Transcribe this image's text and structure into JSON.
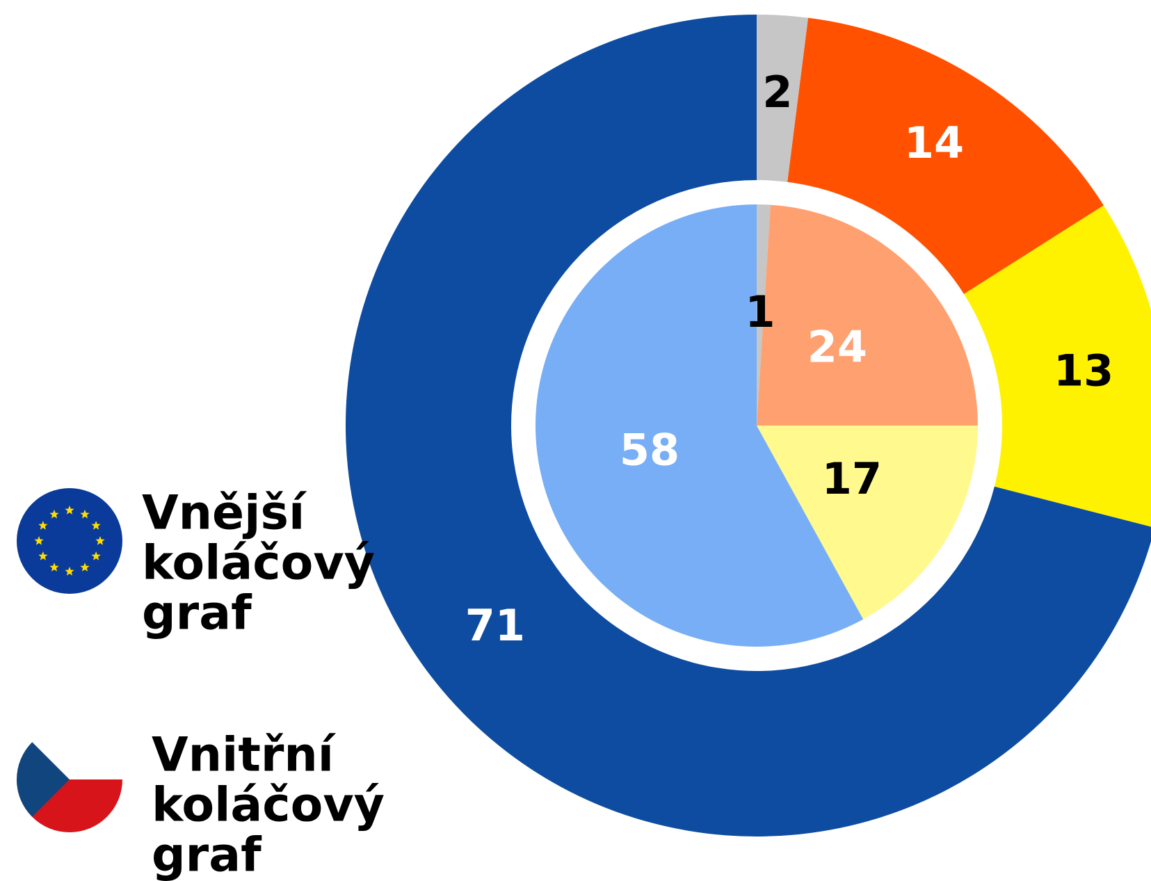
{
  "chart_data": [
    {
      "type": "donut",
      "name": [
        "Vnější",
        "koláčový",
        "graf"
      ],
      "values": [
        2,
        14,
        13,
        71
      ],
      "colors": [
        "#c6c6c6",
        "#ff5100",
        "#fff200",
        "#0e4ca1"
      ],
      "label_colors": [
        "#000000",
        "#ffffff",
        "#000000",
        "#ffffff"
      ]
    },
    {
      "type": "pie",
      "name": [
        "Vnitřní",
        "koláčový",
        "graf"
      ],
      "values": [
        1,
        24,
        17,
        58
      ],
      "colors": [
        "#c6c6c6",
        "#ffa070",
        "#fff98e",
        "#78aef5"
      ],
      "label_colors": [
        "#000000",
        "#ffffff",
        "#000000",
        "#ffffff"
      ]
    }
  ]
}
